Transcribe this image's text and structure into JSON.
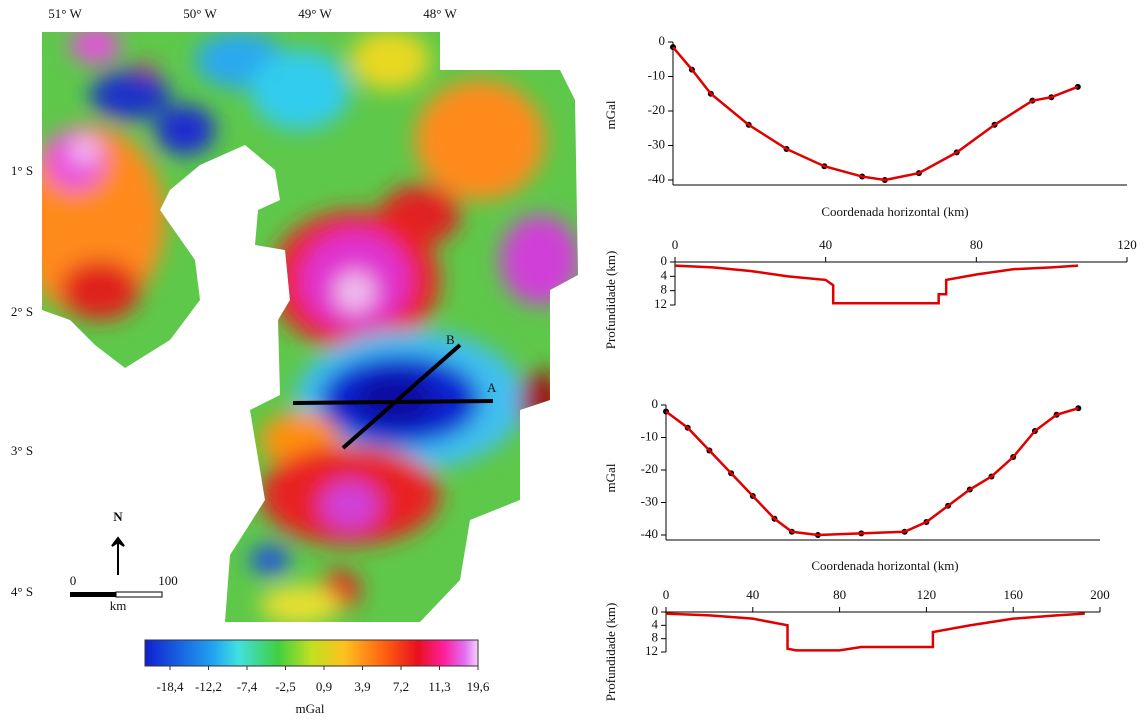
{
  "map": {
    "lon_labels": [
      "51° W",
      "50° W",
      "49° W",
      "48° W"
    ],
    "lat_labels": [
      "1° S",
      "2° S",
      "3° S",
      "4° S"
    ],
    "profile_labels": [
      "A",
      "B"
    ],
    "north": "N",
    "scale_labels": [
      "0",
      "100"
    ],
    "scale_unit": "km",
    "colorbar": {
      "ticks": [
        {
          "value": -18.4,
          "label": "-18,4"
        },
        {
          "value": -12.2,
          "label": "-12,2"
        },
        {
          "value": -7.4,
          "label": "-7,4"
        },
        {
          "value": -2.5,
          "label": "-2,5"
        },
        {
          "value": 0.9,
          "label": "0,9"
        },
        {
          "value": 3.9,
          "label": "3,9"
        },
        {
          "value": 7.2,
          "label": "7,2"
        },
        {
          "value": 11.3,
          "label": "11,3"
        },
        {
          "value": 19.6,
          "label": "19,6"
        }
      ],
      "unit": "mGal"
    }
  },
  "chart_data": [
    {
      "type": "line",
      "ylabel": "mGal",
      "xlabel": "Coordenada horizontal (km)",
      "xaxis": "bottom",
      "xlim": [
        0,
        120
      ],
      "ylim": [
        -40,
        0
      ],
      "yticks": [
        0,
        -10,
        -20,
        -30,
        -40
      ],
      "x": [
        0,
        5,
        10,
        20,
        30,
        40,
        50,
        56,
        65,
        75,
        85,
        95,
        100,
        107
      ],
      "series": [
        {
          "color": "#000000",
          "style": "points",
          "values": [
            -1.5,
            -8,
            -15,
            -24,
            -31,
            -36,
            -39,
            -40,
            -38,
            -32,
            -24,
            -17,
            -16,
            -13
          ]
        },
        {
          "color": "#e00000",
          "style": "line",
          "values": [
            -1.5,
            -8,
            -15,
            -24,
            -31,
            -36,
            -39,
            -40,
            -38,
            -32,
            -24,
            -17,
            -16,
            -13
          ]
        }
      ]
    },
    {
      "type": "line",
      "ylabel": "Profundidade (km)",
      "xaxis": "top",
      "invert_y": true,
      "xlim": [
        0,
        120
      ],
      "xticks": [
        0,
        40,
        80,
        120
      ],
      "ylim": [
        0,
        12
      ],
      "yticks": [
        0,
        4,
        8,
        12
      ],
      "x": [
        0,
        10,
        20,
        30,
        40,
        42,
        42,
        70,
        70,
        72,
        72,
        80,
        90,
        100,
        107
      ],
      "series": [
        {
          "color": "#e00000",
          "style": "line",
          "values": [
            1,
            1.5,
            2.5,
            4,
            5,
            6.5,
            11.5,
            11.5,
            9,
            9,
            5,
            3.5,
            2,
            1.5,
            1
          ]
        }
      ]
    },
    {
      "type": "line",
      "ylabel": "mGal",
      "xlabel": "Coordenada horizontal (km)",
      "xaxis": "bottom",
      "xlim": [
        0,
        200
      ],
      "ylim": [
        -40,
        0
      ],
      "yticks": [
        0,
        -10,
        -20,
        -30,
        -40
      ],
      "x": [
        0,
        10,
        20,
        30,
        40,
        50,
        58,
        70,
        90,
        110,
        120,
        130,
        140,
        150,
        160,
        170,
        180,
        190
      ],
      "series": [
        {
          "color": "#000000",
          "style": "points",
          "values": [
            -2,
            -7,
            -14,
            -21,
            -28,
            -35,
            -39,
            -40,
            -39.5,
            -39,
            -36,
            -31,
            -26,
            -22,
            -16,
            -8,
            -3,
            -1
          ]
        },
        {
          "color": "#e00000",
          "style": "line",
          "values": [
            -2,
            -7,
            -14,
            -21,
            -28,
            -35,
            -39,
            -40,
            -39.5,
            -39,
            -36,
            -31,
            -26,
            -22,
            -16,
            -8,
            -3,
            -1
          ]
        }
      ]
    },
    {
      "type": "line",
      "ylabel": "Profundidade (km)",
      "xaxis": "top",
      "invert_y": true,
      "xlim": [
        0,
        200
      ],
      "xticks": [
        0,
        40,
        80,
        120,
        160,
        200
      ],
      "ylim": [
        0,
        12
      ],
      "yticks": [
        0,
        4,
        8,
        12
      ],
      "x": [
        0,
        20,
        40,
        56,
        56,
        60,
        80,
        90,
        123,
        123,
        140,
        160,
        180,
        193
      ],
      "series": [
        {
          "color": "#e00000",
          "style": "line",
          "values": [
            0.5,
            1,
            2,
            4,
            11,
            11.5,
            11.5,
            10.5,
            10.5,
            6,
            4,
            2,
            1,
            0.5
          ]
        }
      ]
    }
  ]
}
